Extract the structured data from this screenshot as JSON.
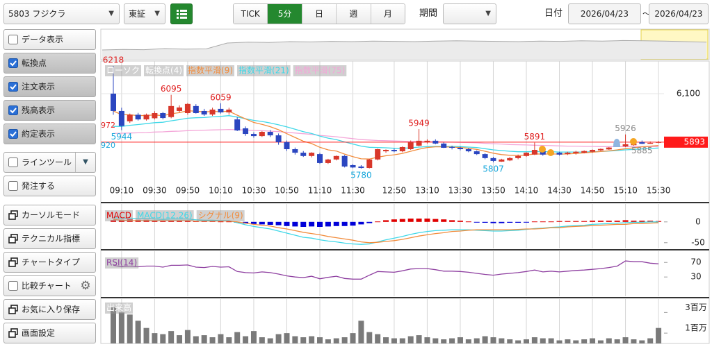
{
  "toolbar": {
    "symbol": "5803 フジクラ",
    "market": "東証",
    "tabs": [
      "TICK",
      "5分",
      "日",
      "週",
      "月"
    ],
    "active_tab": 1,
    "period_label": "期間",
    "date_label": "日付",
    "date_from": "2026/04/23",
    "date_sep": "〜",
    "date_to": "2026/04/23"
  },
  "sidebar": {
    "buttons": [
      {
        "label": "データ表示",
        "icon": "checkbox",
        "checked": false
      },
      {
        "label": "転換点",
        "icon": "checkbox",
        "checked": true
      },
      {
        "label": "注文表示",
        "icon": "checkbox",
        "checked": true
      },
      {
        "label": "残高表示",
        "icon": "checkbox",
        "checked": true
      },
      {
        "label": "約定表示",
        "icon": "checkbox",
        "checked": true
      },
      {
        "label": "ラインツール",
        "icon": "checkbox",
        "checked": false,
        "accessory": "dropdown"
      },
      {
        "label": "発注する",
        "icon": "checkbox",
        "checked": false
      },
      {
        "label": "カーソルモード",
        "icon": "window"
      },
      {
        "label": "テクニカル指標",
        "icon": "window"
      },
      {
        "label": "チャートタイプ",
        "icon": "window"
      },
      {
        "label": "比較チャート",
        "icon": "checkbox",
        "checked": false,
        "accessory": "gear"
      },
      {
        "label": "お気に入り保存",
        "icon": "window"
      },
      {
        "label": "画面設定",
        "icon": "window"
      }
    ]
  },
  "chart": {
    "categories": [
      null,
      "09:10",
      null,
      null,
      null,
      "09:30",
      null,
      null,
      null,
      "09:50",
      null,
      null,
      null,
      "10:10",
      null,
      null,
      null,
      "10:30",
      null,
      null,
      null,
      "10:50",
      null,
      null,
      null,
      "11:10",
      null,
      null,
      null,
      "11:30",
      null,
      null,
      null,
      null,
      "12:50",
      null,
      null,
      null,
      "13:10",
      null,
      null,
      null,
      "13:30",
      null,
      null,
      null,
      "13:50",
      null,
      null,
      null,
      "14:10",
      null,
      null,
      null,
      "14:30",
      null,
      null,
      null,
      "14:50",
      null,
      null,
      null,
      "15:10",
      null,
      null,
      null,
      "15:30"
    ],
    "overview": {
      "ylim": [
        0,
        100
      ],
      "values": [
        30,
        32,
        31,
        35,
        33,
        34,
        55,
        58,
        57,
        60,
        59,
        61,
        60,
        62,
        61,
        60,
        62,
        63,
        62,
        61,
        60,
        62,
        61,
        63,
        62,
        64,
        63,
        62,
        60,
        58
      ]
    },
    "price": {
      "ylim": [
        5715,
        6239
      ],
      "yticks": [
        {
          "value": 6100,
          "label": "6,100"
        }
      ],
      "legend": [
        "ローソク",
        "転換点(4)"
      ],
      "up_color": "#d8372a",
      "down_color": "#2b46c0",
      "open": [
        6100,
        6026,
        5982,
        6010,
        5990,
        5995,
        6017,
        6000,
        6026,
        6017,
        6047,
        6026,
        6011,
        6035,
        6020,
        5990,
        5952,
        5928,
        5919,
        5937,
        5922,
        5893,
        5863,
        5848,
        5834,
        5842,
        5804,
        5819,
        5834,
        5795,
        5789,
        5783,
        5819,
        5854,
        5860,
        5854,
        5863,
        5878,
        5893,
        5899,
        5887,
        5872,
        5869,
        5863,
        5854,
        5842,
        5825,
        5810,
        5815,
        5825,
        5834,
        5840,
        5855,
        5840,
        5848,
        5842,
        5846,
        5848,
        5852,
        5858,
        5862,
        5878,
        5875,
        5880,
        5893,
        5886,
        5890
      ],
      "high": [
        6218,
        6040,
        6015,
        6018,
        6015,
        6025,
        6022,
        6095,
        6050,
        6060,
        6055,
        6035,
        6040,
        6059,
        6040,
        6000,
        5960,
        5935,
        5940,
        5945,
        5930,
        5900,
        5870,
        5855,
        5850,
        5848,
        5822,
        5836,
        5838,
        5800,
        5795,
        5822,
        5865,
        5862,
        5866,
        5875,
        5900,
        5949,
        5905,
        5905,
        5892,
        5878,
        5874,
        5868,
        5858,
        5846,
        5830,
        5822,
        5830,
        5840,
        5850,
        5891,
        5862,
        5850,
        5852,
        5852,
        5856,
        5858,
        5862,
        5866,
        5872,
        5882,
        5926,
        5890,
        5900,
        5896,
        5898
      ],
      "low": [
        6010,
        5944,
        5975,
        5985,
        5985,
        5990,
        5990,
        5995,
        6020,
        6010,
        6015,
        6005,
        6005,
        6015,
        6010,
        5940,
        5920,
        5912,
        5915,
        5915,
        5882,
        5855,
        5840,
        5830,
        5828,
        5800,
        5800,
        5815,
        5785,
        5782,
        5780,
        5781,
        5815,
        5848,
        5850,
        5850,
        5860,
        5875,
        5887,
        5884,
        5868,
        5862,
        5858,
        5850,
        5838,
        5820,
        5807,
        5809,
        5812,
        5820,
        5830,
        5838,
        5835,
        5836,
        5836,
        5838,
        5840,
        5845,
        5848,
        5855,
        5860,
        5872,
        5872,
        5878,
        5885,
        5886,
        5888
      ],
      "close": [
        6026,
        5962,
        6010,
        5990,
        6010,
        6017,
        5996,
        6047,
        6041,
        6056,
        6017,
        6011,
        6032,
        6020,
        6032,
        5943,
        5928,
        5919,
        5937,
        5922,
        5893,
        5863,
        5848,
        5834,
        5848,
        5804,
        5819,
        5834,
        5789,
        5785,
        5783,
        5819,
        5863,
        5860,
        5854,
        5872,
        5893,
        5899,
        5899,
        5887,
        5869,
        5869,
        5863,
        5854,
        5842,
        5825,
        5813,
        5819,
        5825,
        5834,
        5848,
        5860,
        5840,
        5848,
        5840,
        5848,
        5852,
        5855,
        5860,
        5864,
        5870,
        5876,
        5884,
        5887,
        5886,
        5890,
        5893
      ],
      "series": [
        {
          "name": "指数平滑(9)",
          "color": "#f28c3c",
          "values": [
            6026,
            6010,
            6010,
            6006,
            6007,
            6009,
            6006,
            6014,
            6019,
            6027,
            6025,
            6022,
            6024,
            6023,
            6025,
            6008,
            5992,
            5977,
            5969,
            5959,
            5946,
            5929,
            5913,
            5897,
            5887,
            5871,
            5860,
            5855,
            5842,
            5831,
            5822,
            5821,
            5829,
            5835,
            5839,
            5845,
            5854,
            5863,
            5870,
            5873,
            5873,
            5872,
            5870,
            5867,
            5862,
            5854,
            5846,
            5840,
            5837,
            5836,
            5838,
            5843,
            5842,
            5843,
            5842,
            5843,
            5845,
            5847,
            5850,
            5853,
            5856,
            5860,
            5865,
            5869,
            5873,
            5876,
            5879
          ]
        },
        {
          "name": "指数平滑(21)",
          "color": "#3fd8e8",
          "values": [
            5960,
            5960,
            5965,
            5968,
            5972,
            5976,
            5978,
            5984,
            5989,
            5995,
            5997,
            5998,
            6001,
            6003,
            6006,
            6000,
            5993,
            5986,
            5981,
            5975,
            5967,
            5958,
            5948,
            5938,
            5930,
            5919,
            5910,
            5904,
            5894,
            5885,
            5876,
            5871,
            5870,
            5869,
            5867,
            5867,
            5869,
            5872,
            5874,
            5875,
            5875,
            5875,
            5874,
            5872,
            5870,
            5865,
            5860,
            5857,
            5854,
            5852,
            5852,
            5853,
            5852,
            5852,
            5851,
            5851,
            5851,
            5851,
            5852,
            5853,
            5855,
            5857,
            5860,
            5862,
            5864,
            5866,
            5868
          ]
        },
        {
          "name": "指数平滑(75)",
          "color": "#f4a6d8",
          "values": [
            5930,
            5931,
            5932,
            5933,
            5934,
            5936,
            5937,
            5939,
            5940,
            5942,
            5943,
            5944,
            5945,
            5946,
            5947,
            5946,
            5945,
            5943,
            5942,
            5940,
            5938,
            5935,
            5932,
            5929,
            5926,
            5922,
            5919,
            5916,
            5912,
            5908,
            5904,
            5902,
            5900,
            5899,
            5898,
            5897,
            5896,
            5896,
            5895,
            5895,
            5894,
            5893,
            5892,
            5891,
            5890,
            5888,
            5886,
            5885,
            5883,
            5882,
            5881,
            5880,
            5879,
            5878,
            5877,
            5876,
            5876,
            5875,
            5875,
            5874,
            5874,
            5874,
            5874,
            5874,
            5874,
            5874,
            5874
          ]
        }
      ],
      "current": {
        "value": 5893,
        "color": "#ff1a1a"
      },
      "high_low_labels": [
        {
          "value": 6218,
          "color": "#e02020"
        },
        {
          "value": 6095,
          "color": "#e02020"
        },
        {
          "value": 6059,
          "color": "#e02020"
        },
        {
          "value": 5944,
          "color": "#1aa8dc"
        },
        {
          "value": 5780,
          "color": "#1aa8dc"
        },
        {
          "value": 5949,
          "color": "#e02020"
        },
        {
          "value": 5807,
          "color": "#1aa8dc"
        },
        {
          "value": 5891,
          "color": "#e02020"
        },
        {
          "value": 5926,
          "color": "#888888"
        },
        {
          "value": 5885,
          "color": "#888888"
        }
      ],
      "edge_labels": [
        "972",
        "920"
      ]
    },
    "macd": {
      "ylim": [
        -62,
        38
      ],
      "yticks": [
        0,
        -50
      ],
      "histogram": {
        "name": "MACD",
        "up_color": "#e00000",
        "down_color": "#0000d8",
        "values": [
          4,
          5,
          6,
          5,
          5,
          4,
          3,
          4,
          4,
          4,
          3,
          2,
          2,
          1,
          1,
          -2,
          -4,
          -5,
          -6,
          -7,
          -8,
          -10,
          -11,
          -12,
          -11,
          -12,
          -11,
          -10,
          -10,
          -9,
          -6,
          -3,
          1,
          4,
          6,
          7,
          8,
          8,
          8,
          7,
          6,
          4,
          3,
          1,
          -1,
          -2,
          -3,
          -3,
          -2,
          -2,
          -1,
          1,
          1,
          1,
          2,
          2,
          2,
          2,
          3,
          3,
          3,
          3,
          4,
          3,
          3,
          3,
          2
        ]
      },
      "series": [
        {
          "name": "MACD(12,26)",
          "color": "#3fd8e8",
          "values": [
            10,
            9,
            9,
            8,
            8,
            7,
            6,
            7,
            7,
            7,
            5,
            4,
            4,
            3,
            3,
            -2,
            -7,
            -11,
            -14,
            -17,
            -22,
            -27,
            -32,
            -37,
            -39,
            -43,
            -46,
            -48,
            -51,
            -53,
            -54,
            -53,
            -48,
            -43,
            -39,
            -35,
            -30,
            -26,
            -23,
            -21,
            -20,
            -19,
            -19,
            -19,
            -20,
            -21,
            -22,
            -22,
            -21,
            -20,
            -18,
            -16,
            -15,
            -13,
            -12,
            -10,
            -9,
            -8,
            -6,
            -5,
            -4,
            -3,
            -2,
            -1,
            -1,
            0,
            0
          ]
        },
        {
          "name": "シグナル(9)",
          "color": "#f28c3c",
          "values": [
            6,
            4,
            3,
            3,
            3,
            3,
            3,
            3,
            3,
            3,
            2,
            2,
            2,
            2,
            2,
            0,
            -3,
            -6,
            -8,
            -10,
            -14,
            -17,
            -21,
            -25,
            -28,
            -31,
            -35,
            -38,
            -41,
            -44,
            -48,
            -50,
            -49,
            -47,
            -45,
            -42,
            -38,
            -34,
            -31,
            -28,
            -26,
            -23,
            -22,
            -20,
            -19,
            -19,
            -19,
            -19,
            -19,
            -18,
            -17,
            -17,
            -16,
            -14,
            -14,
            -12,
            -11,
            -10,
            -9,
            -8,
            -7,
            -6,
            -6,
            -4,
            -4,
            -3,
            -2
          ]
        }
      ]
    },
    "rsi": {
      "ylim": [
        -23,
        99
      ],
      "yticks": [
        70,
        30
      ],
      "series": [
        {
          "name": "RSI(14)",
          "color": "#8e3fa0",
          "values": [
            62,
            58,
            60,
            58,
            60,
            60,
            57,
            62,
            62,
            63,
            57,
            56,
            59,
            57,
            58,
            45,
            42,
            41,
            44,
            42,
            38,
            33,
            30,
            28,
            32,
            25,
            29,
            32,
            26,
            24,
            24,
            35,
            45,
            44,
            43,
            47,
            52,
            53,
            53,
            50,
            46,
            46,
            45,
            43,
            40,
            37,
            35,
            38,
            40,
            42,
            45,
            49,
            44,
            46,
            44,
            46,
            48,
            49,
            51,
            53,
            56,
            60,
            74,
            72,
            72,
            68,
            66
          ]
        }
      ]
    },
    "volume": {
      "ylim": [
        0,
        4300000
      ],
      "yticks": [
        {
          "value": 1000000,
          "label": "1百万"
        },
        {
          "value": 3000000,
          "label": "3百万"
        }
      ],
      "name": "出来高",
      "color": "#7a7a7a",
      "values": [
        3500000,
        3000000,
        2800000,
        2200000,
        1500000,
        1000000,
        900000,
        1200000,
        800000,
        1300000,
        700000,
        800000,
        600000,
        900000,
        600000,
        1100000,
        700000,
        1200000,
        600000,
        500000,
        900000,
        1000000,
        700000,
        600000,
        700000,
        600000,
        400000,
        500000,
        600000,
        1000000,
        2200000,
        1100000,
        900000,
        600000,
        500000,
        500000,
        700000,
        800000,
        600000,
        500000,
        400000,
        500000,
        600000,
        400000,
        500000,
        700000,
        600000,
        500000,
        400000,
        300000,
        400000,
        600000,
        500000,
        500000,
        300000,
        400000,
        300000,
        400000,
        500000,
        300000,
        500000,
        400000,
        600000,
        400000,
        300000,
        500000,
        1500000
      ]
    }
  }
}
